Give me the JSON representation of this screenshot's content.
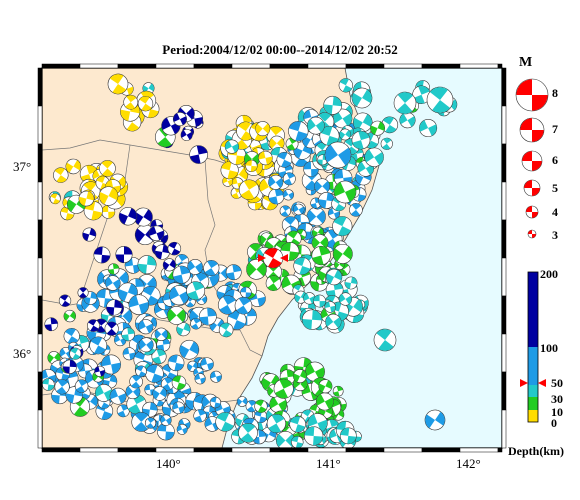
{
  "title": "Period:2004/12/02 00:00--2014/12/02 20:52",
  "axes": {
    "x_ticks": [
      "140°",
      "141°",
      "142°"
    ],
    "y_ticks": [
      "37°",
      "36°"
    ]
  },
  "magnitude_legend": {
    "title": "M",
    "labels": [
      "8",
      "7",
      "6",
      "5",
      "4",
      "3"
    ],
    "color": "#ff0000"
  },
  "depth_colorbar": {
    "title": "Depth(km)",
    "ticks": [
      "200",
      "100",
      "50",
      "30",
      "10",
      "0"
    ],
    "colors": {
      "deep": "#0000a0",
      "intermediate": "#1e9be6",
      "medium": "#22c9c9",
      "shallow": "#22cc22",
      "surface": "#ffdd00"
    }
  },
  "map_colors": {
    "land": "#fde9cf",
    "sea": "#e6fbff",
    "mainshock": "#ff0000"
  }
}
